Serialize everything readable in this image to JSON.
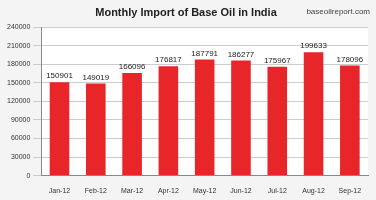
{
  "chart_data": {
    "type": "bar",
    "title": "Monthly Import of Base Oil in India",
    "annotations": [
      "baseoilreport.com"
    ],
    "categories": [
      "Jan-12",
      "Feb-12",
      "Mar-12",
      "Apr-12",
      "May-12",
      "Jun-12",
      "Jul-12",
      "Aug-12",
      "Sep-12"
    ],
    "values": [
      150901,
      149019,
      166096,
      176817,
      187791,
      186277,
      175967,
      199633,
      178096
    ],
    "color": "#e8262a",
    "ylim": [
      0,
      240000
    ],
    "yticks": [
      0,
      30000,
      60000,
      90000,
      120000,
      150000,
      180000,
      210000,
      240000
    ],
    "grid": true,
    "data_labels": true
  }
}
